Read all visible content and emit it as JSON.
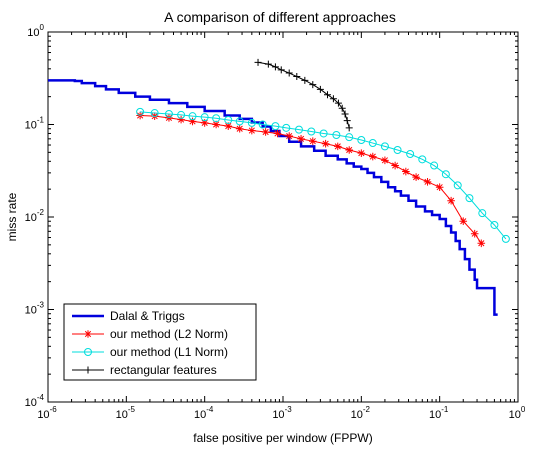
{
  "chart_data": {
    "type": "line",
    "title": "A comparison of different approaches",
    "xlabel": "false positive per window (FPPW)",
    "ylabel": "miss rate",
    "xscale": "log",
    "yscale": "log",
    "xlim": [
      1e-06,
      1
    ],
    "ylim": [
      0.0001,
      1
    ],
    "grid": false,
    "legend_position": "bottom-left",
    "x_ticks": [
      {
        "base": "10",
        "exp": "-6",
        "value": 1e-06
      },
      {
        "base": "10",
        "exp": "-5",
        "value": 1e-05
      },
      {
        "base": "10",
        "exp": "-4",
        "value": 0.0001
      },
      {
        "base": "10",
        "exp": "-3",
        "value": 0.001
      },
      {
        "base": "10",
        "exp": "-2",
        "value": 0.01
      },
      {
        "base": "10",
        "exp": "-1",
        "value": 0.1
      },
      {
        "base": "10",
        "exp": "0",
        "value": 1
      }
    ],
    "y_ticks": [
      {
        "base": "10",
        "exp": "-4",
        "value": 0.0001
      },
      {
        "base": "10",
        "exp": "-3",
        "value": 0.001
      },
      {
        "base": "10",
        "exp": "-2",
        "value": 0.01
      },
      {
        "base": "10",
        "exp": "-1",
        "value": 0.1
      },
      {
        "base": "10",
        "exp": "0",
        "value": 1
      }
    ],
    "series": [
      {
        "name": "Dalal & Triggs",
        "color": "#0000dd",
        "marker": "none",
        "style": "step",
        "points": [
          [
            1e-06,
            0.3
          ],
          [
            2.2e-06,
            0.295
          ],
          [
            2.7e-06,
            0.28
          ],
          [
            4e-06,
            0.26
          ],
          [
            5.5e-06,
            0.24
          ],
          [
            8e-06,
            0.22
          ],
          [
            1.3e-05,
            0.2
          ],
          [
            2e-05,
            0.185
          ],
          [
            3.5e-05,
            0.17
          ],
          [
            6e-05,
            0.155
          ],
          [
            0.0001,
            0.14
          ],
          [
            0.00018,
            0.125
          ],
          [
            0.00028,
            0.115
          ],
          [
            0.0004,
            0.105
          ],
          [
            0.00055,
            0.095
          ],
          [
            0.0007,
            0.085
          ],
          [
            0.0009,
            0.075
          ],
          [
            0.0012,
            0.065
          ],
          [
            0.0017,
            0.058
          ],
          [
            0.0025,
            0.052
          ],
          [
            0.0035,
            0.046
          ],
          [
            0.005,
            0.042
          ],
          [
            0.0065,
            0.038
          ],
          [
            0.008,
            0.035
          ],
          [
            0.01,
            0.033
          ],
          [
            0.012,
            0.03
          ],
          [
            0.0145,
            0.027
          ],
          [
            0.018,
            0.024
          ],
          [
            0.022,
            0.021
          ],
          [
            0.027,
            0.019
          ],
          [
            0.032,
            0.017
          ],
          [
            0.04,
            0.015
          ],
          [
            0.05,
            0.013
          ],
          [
            0.065,
            0.0115
          ],
          [
            0.08,
            0.0105
          ],
          [
            0.1,
            0.0095
          ],
          [
            0.12,
            0.008
          ],
          [
            0.14,
            0.0068
          ],
          [
            0.16,
            0.0055
          ],
          [
            0.18,
            0.0045
          ],
          [
            0.21,
            0.0035
          ],
          [
            0.24,
            0.0027
          ],
          [
            0.28,
            0.0021
          ],
          [
            0.3,
            0.0017
          ],
          [
            0.5,
            0.0017
          ],
          [
            0.5,
            0.00088
          ],
          [
            0.55,
            0.00088
          ]
        ]
      },
      {
        "name": "our method (L2 Norm)",
        "color": "#ff0000",
        "marker": "star",
        "style": "line",
        "points": [
          [
            1.5e-05,
            0.125
          ],
          [
            2.3e-05,
            0.123
          ],
          [
            3.5e-05,
            0.118
          ],
          [
            5e-05,
            0.113
          ],
          [
            7e-05,
            0.108
          ],
          [
            0.0001,
            0.104
          ],
          [
            0.00014,
            0.1
          ],
          [
            0.0002,
            0.096
          ],
          [
            0.00028,
            0.09
          ],
          [
            0.0004,
            0.086
          ],
          [
            0.0006,
            0.083
          ],
          [
            0.00085,
            0.08
          ],
          [
            0.0012,
            0.075
          ],
          [
            0.0017,
            0.07
          ],
          [
            0.0024,
            0.066
          ],
          [
            0.0035,
            0.062
          ],
          [
            0.005,
            0.058
          ],
          [
            0.007,
            0.053
          ],
          [
            0.01,
            0.049
          ],
          [
            0.014,
            0.045
          ],
          [
            0.02,
            0.041
          ],
          [
            0.027,
            0.036
          ],
          [
            0.037,
            0.031
          ],
          [
            0.05,
            0.027
          ],
          [
            0.07,
            0.024
          ],
          [
            0.1,
            0.021
          ],
          [
            0.14,
            0.015
          ],
          [
            0.2,
            0.009
          ],
          [
            0.28,
            0.0066
          ],
          [
            0.34,
            0.0052
          ]
        ]
      },
      {
        "name": "our method (L1 Norm)",
        "color": "#00dddd",
        "marker": "circle",
        "style": "line",
        "points": [
          [
            1.5e-05,
            0.137
          ],
          [
            2.3e-05,
            0.133
          ],
          [
            3.5e-05,
            0.13
          ],
          [
            5e-05,
            0.127
          ],
          [
            7e-05,
            0.123
          ],
          [
            0.0001,
            0.12
          ],
          [
            0.00014,
            0.117
          ],
          [
            0.0002,
            0.112
          ],
          [
            0.00028,
            0.108
          ],
          [
            0.0004,
            0.104
          ],
          [
            0.00055,
            0.1
          ],
          [
            0.0008,
            0.096
          ],
          [
            0.0011,
            0.092
          ],
          [
            0.0016,
            0.088
          ],
          [
            0.0023,
            0.084
          ],
          [
            0.0033,
            0.08
          ],
          [
            0.0048,
            0.077
          ],
          [
            0.007,
            0.073
          ],
          [
            0.01,
            0.068
          ],
          [
            0.014,
            0.063
          ],
          [
            0.02,
            0.058
          ],
          [
            0.029,
            0.053
          ],
          [
            0.042,
            0.048
          ],
          [
            0.06,
            0.042
          ],
          [
            0.085,
            0.036
          ],
          [
            0.12,
            0.029
          ],
          [
            0.17,
            0.022
          ],
          [
            0.24,
            0.016
          ],
          [
            0.35,
            0.011
          ],
          [
            0.5,
            0.0082
          ],
          [
            0.7,
            0.0058
          ]
        ]
      },
      {
        "name": "rectangular features",
        "color": "#000000",
        "marker": "plus",
        "style": "line",
        "points": [
          [
            0.00048,
            0.47
          ],
          [
            0.00065,
            0.45
          ],
          [
            0.0008,
            0.42
          ],
          [
            0.00095,
            0.39
          ],
          [
            0.0012,
            0.36
          ],
          [
            0.0015,
            0.33
          ],
          [
            0.0019,
            0.3
          ],
          [
            0.0024,
            0.27
          ],
          [
            0.003,
            0.24
          ],
          [
            0.0037,
            0.21
          ],
          [
            0.0044,
            0.19
          ],
          [
            0.0051,
            0.17
          ],
          [
            0.0057,
            0.15
          ],
          [
            0.0062,
            0.13
          ],
          [
            0.0066,
            0.11
          ],
          [
            0.007,
            0.092
          ]
        ]
      }
    ]
  }
}
